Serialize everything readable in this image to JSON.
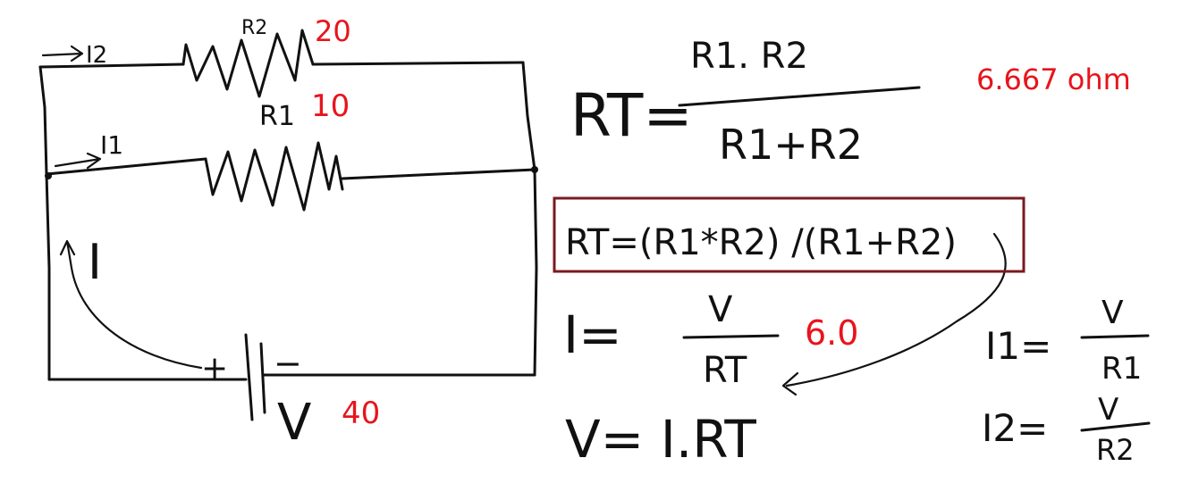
{
  "circuit": {
    "r2_label": "R2",
    "r2_value": "20",
    "r1_label": "R1",
    "r1_value": "10",
    "i2_label": "I2",
    "i1_label": "I1",
    "i_label": "I",
    "plus_sign": "+",
    "minus_sign": "−",
    "v_label": "V",
    "v_value": "40"
  },
  "formulas": {
    "rt_left": "RT=",
    "rt_numerator": "R1. R2",
    "rt_denominator": "R1+R2",
    "rt_result": "6.667 ohm",
    "boxed_formula": "RT=(R1*R2) /(R1+R2)",
    "i_left": "I=",
    "i_numerator": "V",
    "i_denominator": "RT",
    "i_result": "6.0",
    "v_equation": "V= I.RT",
    "i1_left": "I1=",
    "i1_numerator": "V",
    "i1_denominator": "R1",
    "i2_left": "I2=",
    "i2_numerator": "V",
    "i2_denominator": "R2"
  },
  "colors": {
    "ink": "#111111",
    "red_values": "#e8141c",
    "box_border": "#7a1a1f"
  }
}
